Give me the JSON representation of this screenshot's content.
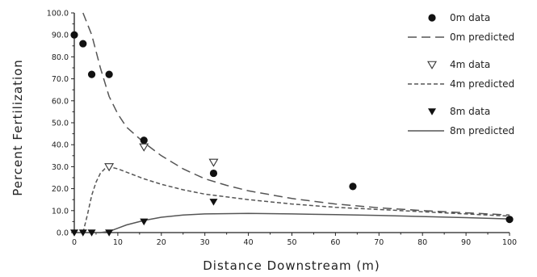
{
  "chart_data": {
    "type": "scatter",
    "title": "",
    "xlabel": "Distance Downstream (m)",
    "ylabel": "Percent Fertilization",
    "xlim": [
      0,
      100
    ],
    "ylim": [
      0,
      100
    ],
    "x_ticks": [
      "0",
      "10",
      "20",
      "30",
      "40",
      "50",
      "60",
      "70",
      "80",
      "90",
      "100"
    ],
    "y_ticks": [
      "0.0",
      "10.0",
      "20.0",
      "30.0",
      "40.0",
      "50.0",
      "60.0",
      "70.0",
      "80.0",
      "90.0",
      "100.0"
    ],
    "grid": false,
    "legend_position": "top-right",
    "series": [
      {
        "name": "0m data",
        "kind": "points",
        "marker": "circle",
        "x": [
          0,
          2,
          4,
          8,
          16,
          32,
          64,
          100
        ],
        "y": [
          90,
          86,
          72,
          72,
          42,
          27,
          21,
          6
        ]
      },
      {
        "name": "0m predicted",
        "kind": "line",
        "style": "long-dash",
        "x": [
          2,
          4,
          6,
          8,
          10,
          12,
          16,
          20,
          25,
          30,
          35,
          40,
          50,
          60,
          70,
          80,
          90,
          100
        ],
        "y": [
          100,
          90,
          75,
          62,
          54,
          48,
          41,
          35,
          29,
          24.5,
          21.5,
          19,
          15.5,
          13,
          11.3,
          10,
          9,
          8
        ]
      },
      {
        "name": "4m data",
        "kind": "points",
        "marker": "triangle-down-open",
        "x": [
          8,
          16,
          32
        ],
        "y": [
          30,
          39,
          32
        ]
      },
      {
        "name": "4m predicted",
        "kind": "line",
        "style": "short-dash",
        "x": [
          2,
          3,
          4,
          5,
          6,
          7,
          8,
          10,
          12,
          16,
          20,
          25,
          30,
          40,
          50,
          60,
          70,
          80,
          90,
          100
        ],
        "y": [
          0,
          8,
          17,
          23,
          27,
          29,
          30,
          29,
          27.5,
          24.5,
          22,
          19.5,
          17.5,
          15,
          13,
          11.5,
          10.5,
          9.5,
          8.5,
          7.5
        ]
      },
      {
        "name": "8m data",
        "kind": "points",
        "marker": "triangle-down-filled",
        "x": [
          0,
          2,
          4,
          8,
          16,
          32
        ],
        "y": [
          0,
          0,
          0,
          0,
          5,
          14
        ]
      },
      {
        "name": "8m predicted",
        "kind": "line",
        "style": "solid",
        "x": [
          0,
          6,
          8,
          10,
          12,
          16,
          20,
          25,
          30,
          40,
          50,
          60,
          70,
          80,
          90,
          100
        ],
        "y": [
          0,
          0,
          0.5,
          2,
          3.5,
          5.5,
          7,
          8,
          8.5,
          8.7,
          8.5,
          8.2,
          7.8,
          7.3,
          6.8,
          6.2
        ]
      }
    ]
  }
}
